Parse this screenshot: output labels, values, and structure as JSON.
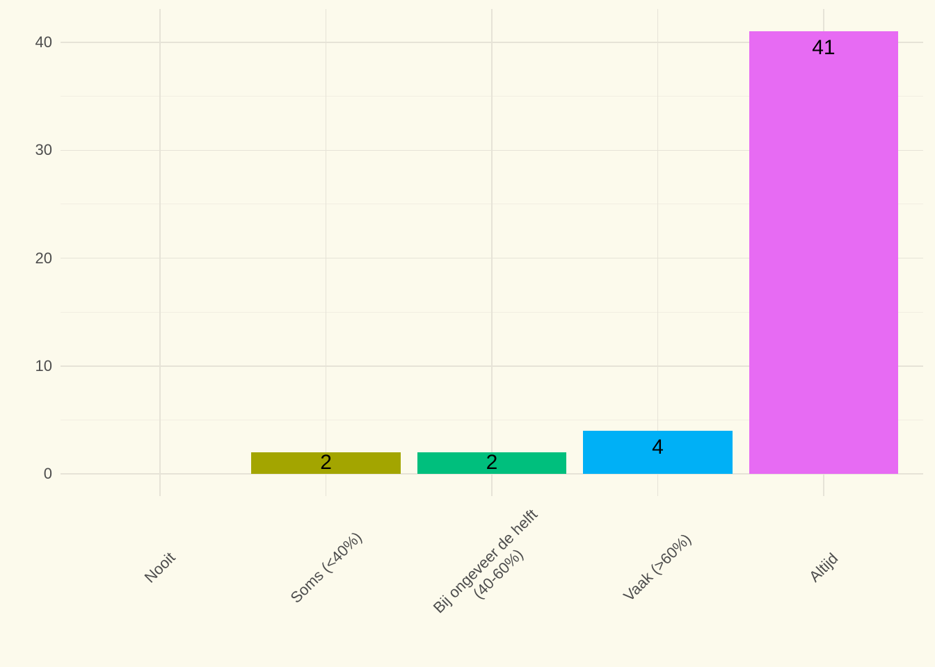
{
  "chart_data": {
    "type": "bar",
    "title": "",
    "xlabel": "",
    "ylabel": "",
    "categories": [
      "Nooit",
      "Soms (<40%)",
      "Bij ongeveer de helft\n(40-60%)",
      "Vaak (>60%)",
      "Altijd"
    ],
    "values": [
      0,
      2,
      2,
      4,
      41
    ],
    "bar_value_labels": [
      "",
      "2",
      "2",
      "4",
      "41"
    ],
    "bar_colors": [
      "#F8766D",
      "#A3A500",
      "#00BF7D",
      "#00B0F6",
      "#E76BF3"
    ],
    "y_ticks": [
      0,
      10,
      20,
      30,
      40
    ],
    "y_tick_labels": [
      "0",
      "10",
      "20",
      "30",
      "40"
    ],
    "y_minor_ticks": [
      5,
      15,
      25,
      35
    ],
    "ylim": [
      0,
      43
    ],
    "x_tick_angle_deg": 45,
    "legend": "none",
    "grid": {
      "horizontal_major": true,
      "horizontal_minor": true,
      "vertical_major": true,
      "vertical_minor": false
    }
  },
  "style": {
    "background_color": "#FCFAEC",
    "grid_major_color": "#E6E3D7",
    "grid_minor_color": "#F1EEE1",
    "axis_text_color": "#4D4D4D",
    "value_label_color": "#000000"
  }
}
